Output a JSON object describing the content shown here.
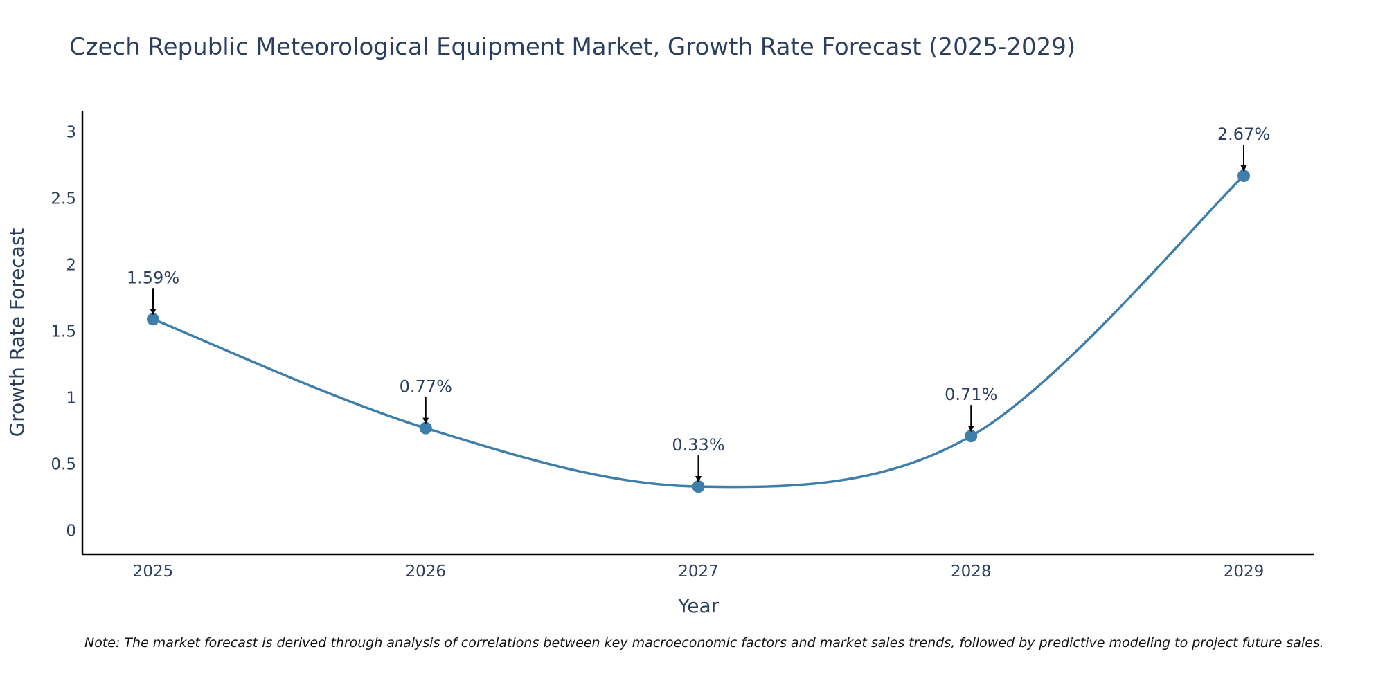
{
  "chart_data": {
    "type": "line",
    "title": "Czech Republic Meteorological Equipment Market, Growth Rate Forecast (2025-2029)",
    "xlabel": "Year",
    "ylabel": "Growth Rate Forecast",
    "categories": [
      "2025",
      "2026",
      "2027",
      "2028",
      "2029"
    ],
    "values": [
      1.59,
      0.77,
      0.33,
      0.71,
      2.67
    ],
    "data_labels": [
      "1.59%",
      "0.77%",
      "0.33%",
      "0.71%",
      "2.67%"
    ],
    "y_ticks": [
      0,
      0.5,
      1,
      1.5,
      2,
      2.5,
      3
    ],
    "y_tick_labels": [
      "0",
      "0.5",
      "1",
      "1.5",
      "2",
      "2.5",
      "3"
    ],
    "ylim": [
      -0.18,
      3.16
    ],
    "grid": false,
    "line_shape": "spline",
    "color": "#3d7eaa",
    "note": "Note: The market forecast is derived through analysis of correlations between key macroeconomic factors and market sales trends, followed by predictive modeling to project future sales."
  }
}
